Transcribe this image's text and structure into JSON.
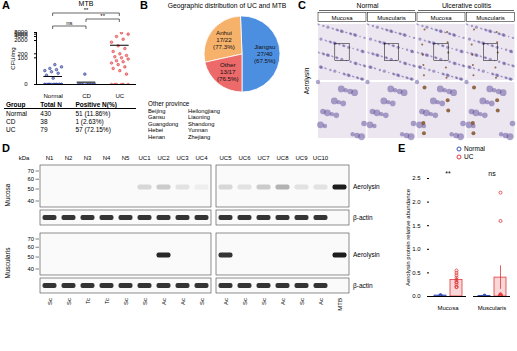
{
  "panel_labels": [
    "A",
    "B",
    "C",
    "D",
    "E"
  ],
  "chart_data": [
    {
      "type": "scatter",
      "title": "MTB",
      "y_label": "CFU/mg",
      "groups": [
        {
          "name": "Normal",
          "color": "#2b3d9b",
          "mean": 3,
          "values": [
            0,
            0,
            0,
            0,
            0,
            0,
            0,
            0,
            0,
            0,
            0,
            0,
            0,
            0,
            0,
            0,
            0,
            0,
            2,
            4,
            6,
            8,
            10,
            12,
            15,
            20,
            30
          ]
        },
        {
          "name": "CD",
          "color": "#2b3d9b",
          "mean": 0.5,
          "values": [
            0,
            0,
            0,
            0,
            0,
            0,
            0,
            0,
            0,
            0,
            5
          ]
        },
        {
          "name": "UC",
          "color": "#e0383c",
          "mean": 880,
          "values": [
            0,
            0,
            0,
            0,
            0,
            0,
            5,
            10,
            15,
            20,
            30,
            40,
            50,
            60,
            80,
            100,
            120,
            150,
            200,
            300,
            500,
            800,
            1500,
            2500,
            4000,
            6000,
            7500
          ]
        }
      ],
      "comparisons": [
        {
          "groups": [
            "Normal",
            "CD"
          ],
          "label": "ns"
        },
        {
          "groups": [
            "Normal",
            "UC"
          ],
          "label": "**"
        },
        {
          "groups": [
            "CD",
            "UC"
          ],
          "label": "**"
        }
      ],
      "ylim": [
        0,
        8000
      ],
      "yticks": [
        0,
        100,
        200,
        2000,
        4000,
        6000,
        8000
      ]
    },
    {
      "type": "pie",
      "title": "Geographic distribution of UC and MTB",
      "categories": [
        "Jiangsu",
        "Anhui",
        "Other"
      ],
      "values": [
        40,
        22,
        17
      ],
      "positive_labels": [
        "27/40 (67.5%)",
        "17/22 (77.3%)",
        "13/17 (76.5%)"
      ],
      "colors": [
        "#4c8fe0",
        "#f6b26b",
        "#ec6a6a"
      ],
      "other_province_title": "Other province",
      "other_provinces": [
        "Beijing",
        "Heilongjiang",
        "Gansu",
        "Liaoning",
        "Guangdong",
        "Shandong",
        "Hebei",
        "Yunnan",
        "Henan",
        "Zhejiang"
      ]
    },
    {
      "type": "bar",
      "y_label": "Aerolysin protein relative abundance",
      "categories": [
        "Mucosa",
        "Muscularis"
      ],
      "series": [
        {
          "name": "Normal",
          "color": "#3a4fb5",
          "values": [
            0.02,
            0.01
          ],
          "errors": [
            0.01,
            0.005
          ],
          "points": [
            [
              0,
              0.01,
              0.02,
              0.03,
              0.02
            ],
            [
              0,
              0.01,
              0,
              0.02,
              0.01
            ]
          ]
        },
        {
          "name": "UC",
          "color": "#e0383c",
          "values": [
            0.35,
            0.4
          ],
          "errors": [
            0.05,
            0.25
          ],
          "points": [
            [
              0.2,
              0.3,
              0.45,
              0.5,
              0.35,
              0.25,
              0.4,
              0.55,
              0.3,
              0.2
            ],
            [
              0.02,
              0.03,
              2.2,
              0.05,
              0.01,
              1.6,
              0.02,
              0.03,
              0.01,
              0.02
            ]
          ]
        }
      ],
      "ylim": [
        0,
        2.5
      ],
      "yticks": [
        {
          "value": 0,
          "label": "0.0"
        },
        {
          "value": 0.5,
          "label": "0.5"
        },
        {
          "value": 1,
          "label": "1.0"
        },
        {
          "value": 1.5,
          "label": "1.5"
        },
        {
          "value": 2,
          "label": "2.0"
        },
        {
          "value": 2.5,
          "label": "2.5"
        }
      ],
      "comparisons": [
        {
          "category": "Mucosa",
          "label": "**"
        },
        {
          "category": "Muscularis",
          "label": "ns"
        }
      ],
      "legend": "top-right"
    }
  ],
  "panel_a_table": {
    "header": [
      "Group",
      "Total N",
      "Positive N(%)"
    ],
    "rows": [
      [
        "Normal",
        "430",
        "51 (11.86%)"
      ],
      [
        "CD",
        "38",
        "1 (2.63%)"
      ],
      [
        "UC",
        "79",
        "57 (72.15%)"
      ]
    ]
  },
  "histology": {
    "headers": [
      "Normal",
      "Ulcerative colitis"
    ],
    "subheaders": [
      "Mucosa",
      "Muscularis",
      "Mucosa",
      "Muscularis"
    ],
    "row_label": "Aerolysin"
  },
  "blot": {
    "marker_unit": "kDa",
    "lanes": [
      [
        "N1",
        "N2",
        "N3",
        "N4",
        "N5",
        "UC1",
        "UC2",
        "UC3",
        "UC4"
      ],
      [
        "UC5",
        "UC6",
        "UC7",
        "UC8",
        "UC9",
        "UC10",
        null
      ]
    ],
    "lane_types": [
      [
        "Sc",
        "Sc",
        "Tc",
        "Tc",
        "Sc",
        "Sc",
        "Ac",
        "Ac",
        "Sc"
      ],
      [
        "Ac",
        "Sc",
        "Sc",
        "Ac",
        "Sc",
        "Ac",
        "MTB"
      ]
    ],
    "tissues": [
      {
        "name": "Mucosa",
        "rows": [
          {
            "label": "Aerolysin",
            "markers": [
              70,
              60,
              50,
              40
            ],
            "band_kda": 52,
            "intensity": [
              [
                0,
                0,
                0,
                0,
                0,
                0.15,
                0.2,
                0.1,
                0.05
              ],
              [
                0.15,
                0.1,
                0.2,
                0.3,
                0.1,
                0.1,
                0.95
              ]
            ]
          },
          {
            "label": "β-actin",
            "intensity": [
              [
                0.85,
                0.85,
                0.85,
                0.85,
                0.85,
                0.85,
                0.85,
                0.85,
                0.85
              ],
              [
                0.85,
                0.85,
                0.85,
                0.85,
                0.85,
                0.85,
                0
              ]
            ]
          }
        ]
      },
      {
        "name": "Muscularis",
        "rows": [
          {
            "label": "Aerolysin",
            "markers": [
              70,
              60,
              50,
              40
            ],
            "band_kda": 52,
            "intensity": [
              [
                0,
                0,
                0,
                0,
                0,
                0,
                0.9,
                0,
                0
              ],
              [
                0.85,
                0,
                0,
                0,
                0,
                0,
                0.95
              ]
            ]
          },
          {
            "label": "β-actin",
            "intensity": [
              [
                0.85,
                0.85,
                0.85,
                0.85,
                0.85,
                0.85,
                0.85,
                0.85,
                0.85
              ],
              [
                0.85,
                0.85,
                0.85,
                0.85,
                0.85,
                0.85,
                0
              ]
            ]
          }
        ]
      }
    ]
  }
}
